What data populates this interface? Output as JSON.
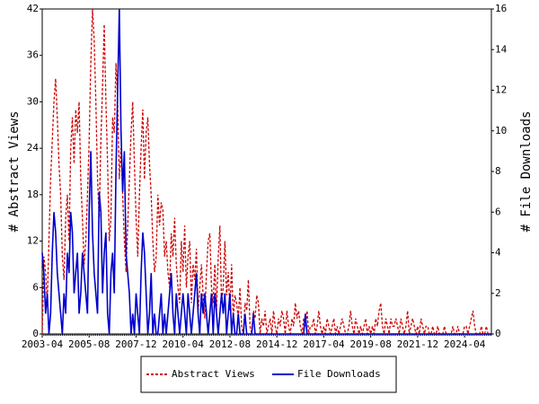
{
  "chart_data": {
    "type": "line",
    "y_label": "# Abstract Views",
    "y2_label": "# File Downloads",
    "categories": [
      "2003-04",
      null,
      null,
      null,
      null,
      null,
      null,
      null,
      null,
      null,
      null,
      null,
      null,
      null,
      null,
      null,
      null,
      null,
      null,
      null,
      null,
      null,
      null,
      null,
      null,
      null,
      null,
      null,
      "2005-08",
      null,
      null,
      null,
      null,
      null,
      null,
      null,
      null,
      null,
      null,
      null,
      null,
      null,
      null,
      null,
      null,
      null,
      null,
      null,
      null,
      null,
      null,
      null,
      null,
      null,
      null,
      null,
      "2007-12",
      null,
      null,
      null,
      null,
      null,
      null,
      null,
      null,
      null,
      null,
      null,
      null,
      null,
      null,
      null,
      null,
      null,
      null,
      null,
      null,
      null,
      null,
      null,
      null,
      null,
      null,
      null,
      "2010-04",
      null,
      null,
      null,
      null,
      null,
      null,
      null,
      null,
      null,
      null,
      null,
      null,
      null,
      null,
      null,
      null,
      null,
      null,
      null,
      null,
      null,
      null,
      null,
      null,
      null,
      null,
      null,
      "2012-08",
      null,
      null,
      null,
      null,
      null,
      null,
      null,
      null,
      null,
      null,
      null,
      null,
      null,
      null,
      null,
      null,
      null,
      null,
      null,
      null,
      null,
      null,
      null,
      null,
      null,
      null,
      null,
      "2014-12",
      null,
      null,
      null,
      null,
      null,
      null,
      null,
      null,
      null,
      null,
      null,
      null,
      null,
      null,
      null,
      null,
      null,
      null,
      null,
      null,
      null,
      null,
      null,
      null,
      null,
      null,
      null,
      "2017-04",
      null,
      null,
      null,
      null,
      null,
      null,
      null,
      null,
      null,
      null,
      null,
      null,
      null,
      null,
      null,
      null,
      null,
      null,
      null,
      null,
      null,
      null,
      null,
      null,
      null,
      null,
      null,
      "2019-08",
      null,
      null,
      null,
      null,
      null,
      null,
      null,
      null,
      null,
      null,
      null,
      null,
      null,
      null,
      null,
      null,
      null,
      null,
      null,
      null,
      null,
      null,
      null,
      null,
      null,
      null,
      null,
      "2021-12",
      null,
      null,
      null,
      null,
      null,
      null,
      null,
      null,
      null,
      null,
      null,
      null,
      null,
      null,
      null,
      null,
      null,
      null,
      null,
      null,
      null,
      null,
      null,
      null,
      null,
      null,
      null,
      "2024-04",
      null,
      null,
      null,
      null,
      null,
      null,
      null,
      null,
      null,
      null,
      null,
      null,
      null,
      null,
      null,
      null
    ],
    "series": [
      {
        "name": "Abstract Views",
        "color": "#cc0000",
        "dash": true,
        "values": [
          0,
          10,
          8,
          4,
          12,
          20,
          25,
          30,
          33,
          28,
          22,
          18,
          10,
          7,
          15,
          18,
          12,
          24,
          28,
          22,
          29,
          26,
          30,
          20,
          15,
          9,
          12,
          18,
          25,
          35,
          42,
          38,
          30,
          20,
          15,
          25,
          32,
          40,
          30,
          22,
          12,
          15,
          28,
          26,
          35,
          30,
          20,
          24,
          18,
          12,
          8,
          14,
          20,
          26,
          30,
          22,
          15,
          10,
          18,
          24,
          29,
          20,
          26,
          28,
          22,
          18,
          12,
          8,
          10,
          18,
          14,
          17,
          16,
          10,
          12,
          8,
          6,
          13,
          10,
          15,
          9,
          6,
          4,
          12,
          8,
          14,
          6,
          10,
          12,
          4,
          9,
          7,
          11,
          3,
          6,
          9,
          5,
          2,
          8,
          12,
          13,
          6,
          4,
          9,
          3,
          10,
          14,
          4,
          6,
          12,
          5,
          8,
          3,
          9,
          2,
          5,
          4,
          2,
          6,
          1,
          0,
          4,
          3,
          7,
          1,
          0,
          3,
          2,
          5,
          4,
          0,
          2,
          1,
          3,
          0,
          1,
          2,
          0,
          3,
          1,
          0,
          2,
          1,
          3,
          2,
          0,
          3,
          1,
          0,
          2,
          1,
          4,
          2,
          3,
          1,
          0,
          2,
          1,
          3,
          0,
          1,
          1,
          2,
          0,
          1,
          3,
          1,
          0,
          1,
          0,
          2,
          1,
          0,
          1,
          2,
          0,
          1,
          0,
          1,
          2,
          1,
          0,
          0,
          1,
          3,
          1,
          0,
          2,
          1,
          0,
          1,
          0,
          1,
          2,
          0,
          1,
          0,
          1,
          0,
          2,
          1,
          3,
          4,
          1,
          0,
          2,
          1,
          0,
          2,
          1,
          1,
          2,
          1,
          0,
          2,
          1,
          0,
          1,
          3,
          0,
          1,
          2,
          1,
          0,
          1,
          0,
          2,
          1,
          0,
          1,
          1,
          0,
          0,
          1,
          0,
          0,
          1,
          0,
          0,
          0,
          1,
          0,
          0,
          0,
          0,
          1,
          0,
          0,
          1,
          0,
          0,
          0,
          1,
          1,
          0,
          1,
          2,
          3,
          1,
          0,
          0,
          0,
          1,
          0,
          0,
          1,
          0,
          0,
          0
        ]
      },
      {
        "name": "File Downloads",
        "color": "#0000cc",
        "dash": false,
        "axis": "y2",
        "values": [
          4,
          3,
          1,
          2,
          0,
          1,
          4,
          6,
          5,
          3,
          2,
          1,
          0,
          2,
          1,
          4,
          3,
          6,
          5,
          2,
          3,
          4,
          1,
          2,
          4,
          3,
          2,
          1,
          6,
          9,
          5,
          3,
          2,
          1,
          7,
          6,
          2,
          4,
          5,
          1,
          0,
          3,
          4,
          2,
          8,
          12,
          16,
          10,
          7,
          9,
          4,
          3,
          2,
          0,
          1,
          0,
          2,
          1,
          0,
          3,
          5,
          4,
          2,
          0,
          1,
          3,
          0,
          1,
          0,
          0,
          1,
          2,
          0,
          1,
          0,
          1,
          2,
          3,
          1,
          0,
          2,
          1,
          0,
          1,
          2,
          1,
          0,
          2,
          1,
          0,
          1,
          2,
          3,
          1,
          0,
          2,
          1,
          2,
          1,
          0,
          1,
          2,
          0,
          2,
          1,
          0,
          1,
          2,
          1,
          2,
          0,
          1,
          2,
          0,
          1,
          0,
          0,
          1,
          0,
          0,
          0,
          1,
          0,
          0,
          0,
          0,
          1,
          0,
          0,
          0,
          0,
          0,
          0,
          0,
          0,
          0,
          0,
          0,
          0,
          0,
          0,
          0,
          0,
          0,
          0,
          0,
          0,
          0,
          0,
          0,
          0,
          0,
          0,
          0,
          0,
          0,
          0,
          1,
          0,
          0,
          0,
          0,
          0,
          0,
          0,
          0,
          0,
          0,
          0,
          0,
          0,
          0,
          0,
          0,
          0,
          0,
          0,
          0,
          0,
          0,
          0,
          0,
          0,
          0,
          0,
          0,
          0,
          0,
          0,
          0,
          0,
          0,
          0,
          0,
          0,
          0,
          0,
          0,
          0,
          0,
          0,
          0,
          0,
          0,
          0,
          0,
          0,
          0,
          0,
          0,
          0,
          0,
          0,
          0,
          0,
          0,
          0,
          0,
          0,
          0,
          0,
          0,
          0,
          0,
          0,
          0,
          0,
          0,
          0,
          0,
          0,
          0,
          0,
          0,
          0,
          0,
          0,
          0,
          0,
          0,
          0,
          0,
          0,
          0,
          0,
          0,
          0,
          0,
          0,
          0,
          0,
          0,
          0,
          0,
          0,
          0,
          0,
          0,
          0,
          0,
          0,
          0,
          0,
          0,
          0,
          0,
          0,
          0,
          0
        ]
      }
    ],
    "ylim": [
      0,
      42
    ],
    "yticks": [
      0,
      6,
      12,
      18,
      24,
      30,
      36,
      42
    ],
    "y2lim": [
      0,
      16
    ],
    "y2ticks": [
      0,
      2,
      4,
      6,
      8,
      10,
      12,
      14,
      16
    ],
    "legend": "bottom"
  }
}
